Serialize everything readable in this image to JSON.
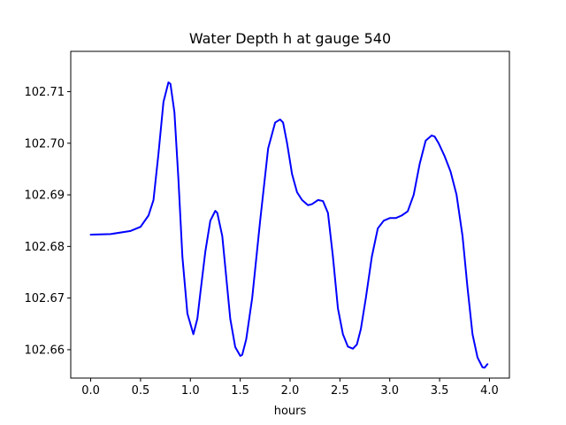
{
  "chart_data": {
    "type": "line",
    "title": "Water Depth h at gauge 540",
    "xlabel": "hours",
    "ylabel": "",
    "xlim": [
      -0.2,
      4.2
    ],
    "ylim": [
      102.6545,
      102.7178
    ],
    "xticks": [
      0.0,
      0.5,
      1.0,
      1.5,
      2.0,
      2.5,
      3.0,
      3.5,
      4.0
    ],
    "xtick_labels": [
      "0.0",
      "0.5",
      "1.0",
      "1.5",
      "2.0",
      "2.5",
      "3.0",
      "3.5",
      "4.0"
    ],
    "yticks": [
      102.66,
      102.67,
      102.68,
      102.69,
      102.7,
      102.71
    ],
    "ytick_labels": [
      "102.66",
      "102.67",
      "102.68",
      "102.69",
      "102.70",
      "102.71"
    ],
    "grid": false,
    "series": [
      {
        "color": "#0000ff",
        "x": [
          0.0,
          0.2,
          0.4,
          0.5,
          0.58,
          0.63,
          0.68,
          0.73,
          0.78,
          0.8,
          0.84,
          0.88,
          0.92,
          0.97,
          1.03,
          1.07,
          1.1,
          1.15,
          1.2,
          1.25,
          1.27,
          1.32,
          1.36,
          1.4,
          1.45,
          1.5,
          1.52,
          1.56,
          1.62,
          1.7,
          1.78,
          1.85,
          1.9,
          1.93,
          1.97,
          2.02,
          2.07,
          2.12,
          2.18,
          2.22,
          2.28,
          2.33,
          2.38,
          2.43,
          2.48,
          2.53,
          2.58,
          2.63,
          2.67,
          2.71,
          2.76,
          2.82,
          2.88,
          2.94,
          3.0,
          3.06,
          3.12,
          3.18,
          3.24,
          3.3,
          3.36,
          3.42,
          3.45,
          3.49,
          3.55,
          3.61,
          3.67,
          3.73,
          3.78,
          3.83,
          3.88,
          3.93,
          3.95,
          3.98
        ],
        "y": [
          102.6823,
          102.6824,
          102.683,
          102.6838,
          102.686,
          102.689,
          102.698,
          102.708,
          102.7118,
          102.7115,
          102.706,
          102.693,
          102.678,
          102.667,
          102.663,
          102.666,
          102.671,
          102.679,
          102.685,
          102.6869,
          102.6865,
          102.682,
          102.674,
          102.666,
          102.6605,
          102.6588,
          102.659,
          102.662,
          102.67,
          102.685,
          102.699,
          102.704,
          102.7046,
          102.704,
          102.7,
          102.694,
          102.6905,
          102.689,
          102.688,
          102.6882,
          102.689,
          102.6888,
          102.6865,
          102.678,
          102.668,
          102.663,
          102.6606,
          102.6602,
          102.661,
          102.664,
          102.67,
          102.678,
          102.6835,
          102.685,
          102.6855,
          102.6855,
          102.686,
          102.6868,
          102.69,
          102.696,
          102.7005,
          102.7015,
          102.7013,
          102.7,
          102.6975,
          102.6945,
          102.69,
          102.682,
          102.672,
          102.663,
          102.6585,
          102.6566,
          102.6565,
          102.6572
        ]
      }
    ]
  }
}
